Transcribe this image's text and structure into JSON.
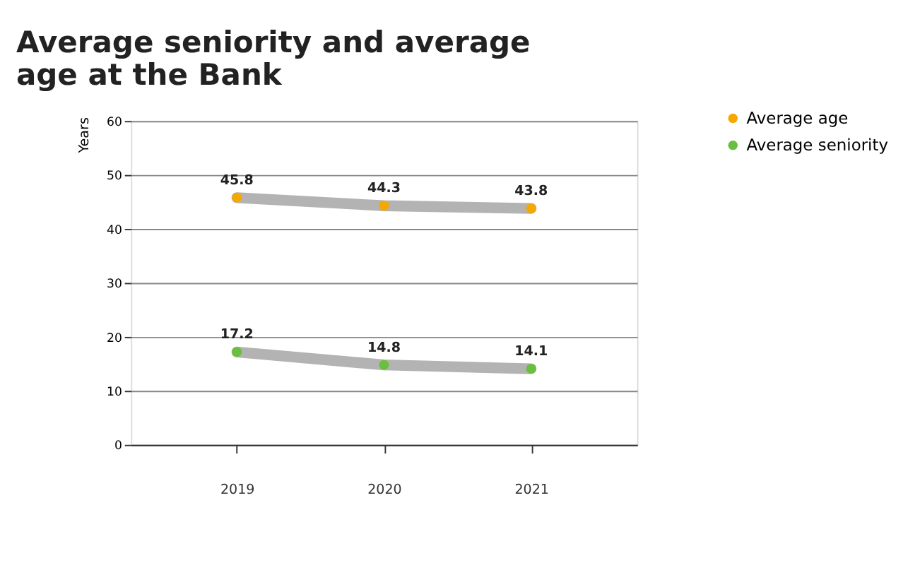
{
  "chart_data": {
    "type": "line",
    "title": "Average seniority and average age at the Bank",
    "ylabel": "Years",
    "categories": [
      "2019",
      "2020",
      "2021"
    ],
    "series": [
      {
        "name": "Average age",
        "color": "#f5a800",
        "values": [
          45.8,
          44.3,
          43.8
        ]
      },
      {
        "name": "Average seniority",
        "color": "#6abf3f",
        "values": [
          17.2,
          14.8,
          14.1
        ]
      }
    ],
    "ylim": [
      0,
      60
    ],
    "yticks": [
      0,
      10,
      20,
      30,
      40,
      50,
      60
    ],
    "grid": "y",
    "legend": "top right",
    "marker": "circle",
    "data_labels": true
  }
}
